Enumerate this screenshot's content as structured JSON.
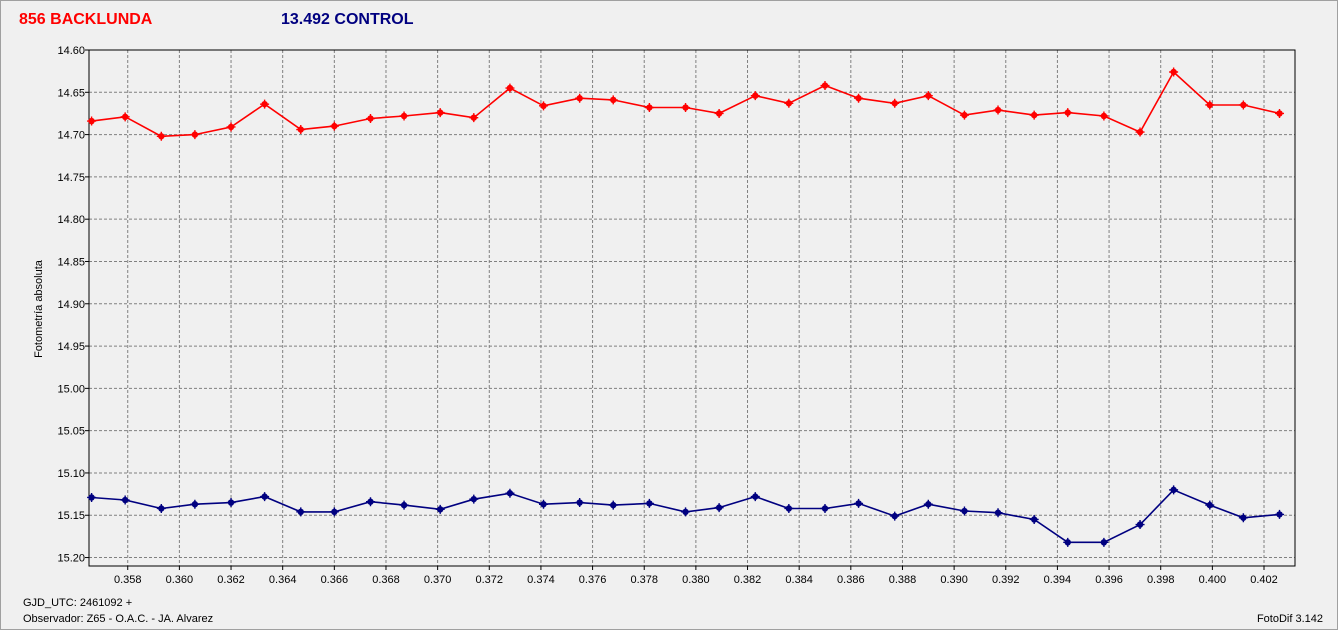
{
  "header": {
    "target_label": "856 BACKLUNDA",
    "control_label": "13.492 CONTROL"
  },
  "footer": {
    "gjd": "GJD_UTC: 2461092 +",
    "observer": "Observador: Z65 - O.A.C. - JA. Alvarez",
    "software": "FotoDif 3.142"
  },
  "colors": {
    "target": "#ff0000",
    "control": "#000080",
    "grid": "#808080",
    "plot_bg": "#f0f0f0"
  },
  "chart_data": {
    "type": "line",
    "ylabel": "Fotometría absoluta",
    "xlabel": "",
    "xlim": [
      0.3565,
      0.4032
    ],
    "ylim": [
      14.6,
      15.21
    ],
    "y_inverted": true,
    "grid": true,
    "x_ticks": [
      "0.358",
      "0.360",
      "0.362",
      "0.364",
      "0.366",
      "0.368",
      "0.370",
      "0.372",
      "0.374",
      "0.376",
      "0.378",
      "0.380",
      "0.382",
      "0.384",
      "0.386",
      "0.388",
      "0.390",
      "0.392",
      "0.394",
      "0.396",
      "0.398",
      "0.400",
      "0.402"
    ],
    "y_ticks": [
      "14.60",
      "14.65",
      "14.70",
      "14.75",
      "14.80",
      "14.85",
      "14.90",
      "14.95",
      "15.00",
      "15.05",
      "15.10",
      "15.15",
      "15.20"
    ],
    "x": [
      0.3566,
      0.3579,
      0.3593,
      0.3606,
      0.362,
      0.3633,
      0.3647,
      0.366,
      0.3674,
      0.3687,
      0.3701,
      0.3714,
      0.3728,
      0.3741,
      0.3755,
      0.3768,
      0.3782,
      0.3796,
      0.3809,
      0.3823,
      0.3836,
      0.385,
      0.3863,
      0.3877,
      0.389,
      0.3904,
      0.3917,
      0.3931,
      0.3944,
      0.3958,
      0.3972,
      0.3985,
      0.3999,
      0.4012,
      0.4026
    ],
    "series": [
      {
        "name": "856 BACKLUNDA",
        "values": [
          14.684,
          14.679,
          14.702,
          14.7,
          14.691,
          14.664,
          14.694,
          14.69,
          14.681,
          14.678,
          14.674,
          14.68,
          14.645,
          14.666,
          14.657,
          14.659,
          14.668,
          14.668,
          14.675,
          14.654,
          14.663,
          14.642,
          14.657,
          14.663,
          14.654,
          14.677,
          14.671,
          14.677,
          14.674,
          14.678,
          14.697,
          14.626,
          14.665,
          14.665,
          14.675
        ]
      },
      {
        "name": "13.492 CONTROL",
        "values": [
          15.129,
          15.132,
          15.142,
          15.137,
          15.135,
          15.128,
          15.146,
          15.146,
          15.134,
          15.138,
          15.143,
          15.131,
          15.124,
          15.137,
          15.135,
          15.138,
          15.136,
          15.146,
          15.141,
          15.128,
          15.142,
          15.142,
          15.136,
          15.151,
          15.137,
          15.145,
          15.147,
          15.155,
          15.182,
          15.182,
          15.161,
          15.12,
          15.138,
          15.153,
          15.149
        ]
      }
    ]
  }
}
